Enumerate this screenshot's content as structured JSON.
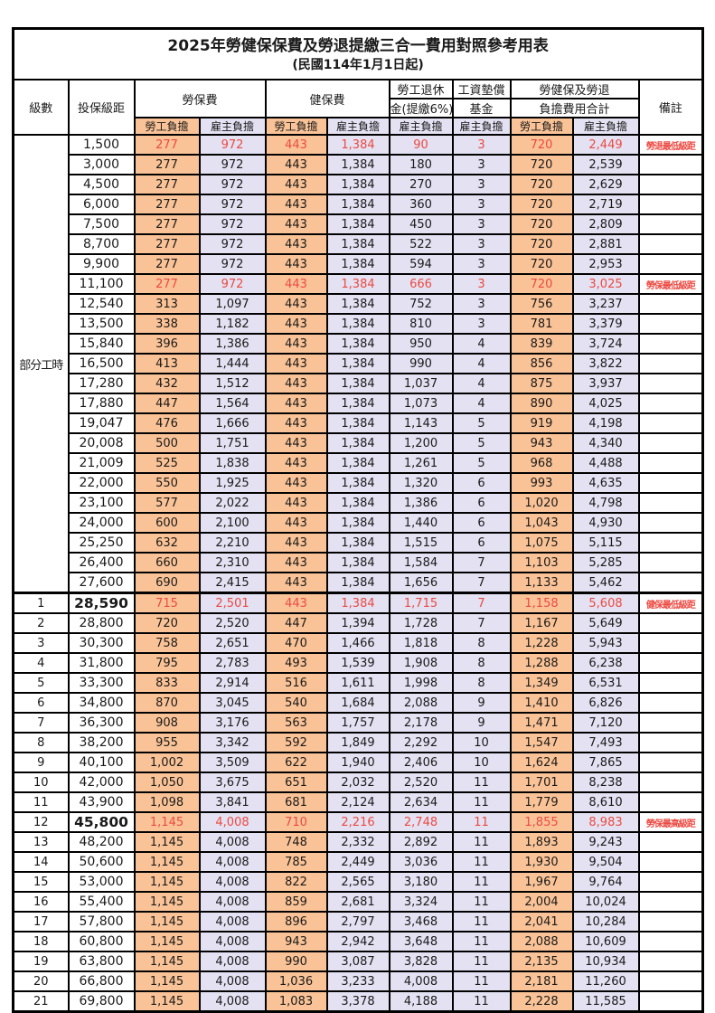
{
  "title": {
    "main": "2025年勞健保保費及勞退提繳三合一費用對照參考用表",
    "sub": "(民國114年1月1日起)"
  },
  "header": {
    "level": "級數",
    "bracket": "投保級距",
    "labor": "勞保費",
    "health": "健保費",
    "pension1": "勞工退休",
    "pension2": "金(提繳6%)",
    "wage1": "工資墊償",
    "wage2": "基金",
    "total1": "勞健保及勞退",
    "total2": "負擔費用合計",
    "note": "備註",
    "employee": "勞工負擔",
    "employer": "雇主負擔"
  },
  "colors": {
    "employee_fill": "#FAC397",
    "employer_fill": "#E3E1F2",
    "highlight_red": "#EC4A42",
    "border": "#000000",
    "background": "#FFFFFF"
  },
  "part_time": {
    "label": "部分工時",
    "rowspan": 23
  },
  "rows": [
    {
      "lv": null,
      "br": "1,500",
      "v": [
        "277",
        "972",
        "443",
        "1,384",
        "90",
        "3",
        "720",
        "2,449"
      ],
      "note": "勞退最低級距",
      "red": 1
    },
    {
      "lv": null,
      "br": "3,000",
      "v": [
        "277",
        "972",
        "443",
        "1,384",
        "180",
        "3",
        "720",
        "2,539"
      ],
      "note": ""
    },
    {
      "lv": null,
      "br": "4,500",
      "v": [
        "277",
        "972",
        "443",
        "1,384",
        "270",
        "3",
        "720",
        "2,629"
      ],
      "note": ""
    },
    {
      "lv": null,
      "br": "6,000",
      "v": [
        "277",
        "972",
        "443",
        "1,384",
        "360",
        "3",
        "720",
        "2,719"
      ],
      "note": ""
    },
    {
      "lv": null,
      "br": "7,500",
      "v": [
        "277",
        "972",
        "443",
        "1,384",
        "450",
        "3",
        "720",
        "2,809"
      ],
      "note": ""
    },
    {
      "lv": null,
      "br": "8,700",
      "v": [
        "277",
        "972",
        "443",
        "1,384",
        "522",
        "3",
        "720",
        "2,881"
      ],
      "note": ""
    },
    {
      "lv": null,
      "br": "9,900",
      "v": [
        "277",
        "972",
        "443",
        "1,384",
        "594",
        "3",
        "720",
        "2,953"
      ],
      "note": ""
    },
    {
      "lv": null,
      "br": "11,100",
      "v": [
        "277",
        "972",
        "443",
        "1,384",
        "666",
        "3",
        "720",
        "3,025"
      ],
      "note": "勞保最低級距",
      "red": 1
    },
    {
      "lv": null,
      "br": "12,540",
      "v": [
        "313",
        "1,097",
        "443",
        "1,384",
        "752",
        "3",
        "756",
        "3,237"
      ],
      "note": ""
    },
    {
      "lv": null,
      "br": "13,500",
      "v": [
        "338",
        "1,182",
        "443",
        "1,384",
        "810",
        "3",
        "781",
        "3,379"
      ],
      "note": ""
    },
    {
      "lv": null,
      "br": "15,840",
      "v": [
        "396",
        "1,386",
        "443",
        "1,384",
        "950",
        "4",
        "839",
        "3,724"
      ],
      "note": ""
    },
    {
      "lv": null,
      "br": "16,500",
      "v": [
        "413",
        "1,444",
        "443",
        "1,384",
        "990",
        "4",
        "856",
        "3,822"
      ],
      "note": ""
    },
    {
      "lv": null,
      "br": "17,280",
      "v": [
        "432",
        "1,512",
        "443",
        "1,384",
        "1,037",
        "4",
        "875",
        "3,937"
      ],
      "note": ""
    },
    {
      "lv": null,
      "br": "17,880",
      "v": [
        "447",
        "1,564",
        "443",
        "1,384",
        "1,073",
        "4",
        "890",
        "4,025"
      ],
      "note": ""
    },
    {
      "lv": null,
      "br": "19,047",
      "v": [
        "476",
        "1,666",
        "443",
        "1,384",
        "1,143",
        "5",
        "919",
        "4,198"
      ],
      "note": ""
    },
    {
      "lv": null,
      "br": "20,008",
      "v": [
        "500",
        "1,751",
        "443",
        "1,384",
        "1,200",
        "5",
        "943",
        "4,340"
      ],
      "note": ""
    },
    {
      "lv": null,
      "br": "21,009",
      "v": [
        "525",
        "1,838",
        "443",
        "1,384",
        "1,261",
        "5",
        "968",
        "4,488"
      ],
      "note": ""
    },
    {
      "lv": null,
      "br": "22,000",
      "v": [
        "550",
        "1,925",
        "443",
        "1,384",
        "1,320",
        "6",
        "993",
        "4,635"
      ],
      "note": ""
    },
    {
      "lv": null,
      "br": "23,100",
      "v": [
        "577",
        "2,022",
        "443",
        "1,384",
        "1,386",
        "6",
        "1,020",
        "4,798"
      ],
      "note": ""
    },
    {
      "lv": null,
      "br": "24,000",
      "v": [
        "600",
        "2,100",
        "443",
        "1,384",
        "1,440",
        "6",
        "1,043",
        "4,930"
      ],
      "note": ""
    },
    {
      "lv": null,
      "br": "25,250",
      "v": [
        "632",
        "2,210",
        "443",
        "1,384",
        "1,515",
        "6",
        "1,075",
        "5,115"
      ],
      "note": ""
    },
    {
      "lv": null,
      "br": "26,400",
      "v": [
        "660",
        "2,310",
        "443",
        "1,384",
        "1,584",
        "7",
        "1,103",
        "5,285"
      ],
      "note": ""
    },
    {
      "lv": null,
      "br": "27,600",
      "v": [
        "690",
        "2,415",
        "443",
        "1,384",
        "1,656",
        "7",
        "1,133",
        "5,462"
      ],
      "note": ""
    },
    {
      "lv": "1",
      "br": "28,590",
      "v": [
        "715",
        "2,501",
        "443",
        "1,384",
        "1,715",
        "7",
        "1,158",
        "5,608"
      ],
      "note": "健保最低級距",
      "red": 1,
      "bold": 1,
      "thick": 1
    },
    {
      "lv": "2",
      "br": "28,800",
      "v": [
        "720",
        "2,520",
        "447",
        "1,394",
        "1,728",
        "7",
        "1,167",
        "5,649"
      ],
      "note": ""
    },
    {
      "lv": "3",
      "br": "30,300",
      "v": [
        "758",
        "2,651",
        "470",
        "1,466",
        "1,818",
        "8",
        "1,228",
        "5,943"
      ],
      "note": ""
    },
    {
      "lv": "4",
      "br": "31,800",
      "v": [
        "795",
        "2,783",
        "493",
        "1,539",
        "1,908",
        "8",
        "1,288",
        "6,238"
      ],
      "note": ""
    },
    {
      "lv": "5",
      "br": "33,300",
      "v": [
        "833",
        "2,914",
        "516",
        "1,611",
        "1,998",
        "8",
        "1,349",
        "6,531"
      ],
      "note": ""
    },
    {
      "lv": "6",
      "br": "34,800",
      "v": [
        "870",
        "3,045",
        "540",
        "1,684",
        "2,088",
        "9",
        "1,410",
        "6,826"
      ],
      "note": ""
    },
    {
      "lv": "7",
      "br": "36,300",
      "v": [
        "908",
        "3,176",
        "563",
        "1,757",
        "2,178",
        "9",
        "1,471",
        "7,120"
      ],
      "note": ""
    },
    {
      "lv": "8",
      "br": "38,200",
      "v": [
        "955",
        "3,342",
        "592",
        "1,849",
        "2,292",
        "10",
        "1,547",
        "7,493"
      ],
      "note": ""
    },
    {
      "lv": "9",
      "br": "40,100",
      "v": [
        "1,002",
        "3,509",
        "622",
        "1,940",
        "2,406",
        "10",
        "1,624",
        "7,865"
      ],
      "note": ""
    },
    {
      "lv": "10",
      "br": "42,000",
      "v": [
        "1,050",
        "3,675",
        "651",
        "2,032",
        "2,520",
        "11",
        "1,701",
        "8,238"
      ],
      "note": ""
    },
    {
      "lv": "11",
      "br": "43,900",
      "v": [
        "1,098",
        "3,841",
        "681",
        "2,124",
        "2,634",
        "11",
        "1,779",
        "8,610"
      ],
      "note": ""
    },
    {
      "lv": "12",
      "br": "45,800",
      "v": [
        "1,145",
        "4,008",
        "710",
        "2,216",
        "2,748",
        "11",
        "1,855",
        "8,983"
      ],
      "note": "勞保最高級距",
      "red": 1,
      "bold": 1
    },
    {
      "lv": "13",
      "br": "48,200",
      "v": [
        "1,145",
        "4,008",
        "748",
        "2,332",
        "2,892",
        "11",
        "1,893",
        "9,243"
      ],
      "note": ""
    },
    {
      "lv": "14",
      "br": "50,600",
      "v": [
        "1,145",
        "4,008",
        "785",
        "2,449",
        "3,036",
        "11",
        "1,930",
        "9,504"
      ],
      "note": ""
    },
    {
      "lv": "15",
      "br": "53,000",
      "v": [
        "1,145",
        "4,008",
        "822",
        "2,565",
        "3,180",
        "11",
        "1,967",
        "9,764"
      ],
      "note": ""
    },
    {
      "lv": "16",
      "br": "55,400",
      "v": [
        "1,145",
        "4,008",
        "859",
        "2,681",
        "3,324",
        "11",
        "2,004",
        "10,024"
      ],
      "note": ""
    },
    {
      "lv": "17",
      "br": "57,800",
      "v": [
        "1,145",
        "4,008",
        "896",
        "2,797",
        "3,468",
        "11",
        "2,041",
        "10,284"
      ],
      "note": ""
    },
    {
      "lv": "18",
      "br": "60,800",
      "v": [
        "1,145",
        "4,008",
        "943",
        "2,942",
        "3,648",
        "11",
        "2,088",
        "10,609"
      ],
      "note": ""
    },
    {
      "lv": "19",
      "br": "63,800",
      "v": [
        "1,145",
        "4,008",
        "990",
        "3,087",
        "3,828",
        "11",
        "2,135",
        "10,934"
      ],
      "note": ""
    },
    {
      "lv": "20",
      "br": "66,800",
      "v": [
        "1,145",
        "4,008",
        "1,036",
        "3,233",
        "4,008",
        "11",
        "2,181",
        "11,260"
      ],
      "note": ""
    },
    {
      "lv": "21",
      "br": "69,800",
      "v": [
        "1,145",
        "4,008",
        "1,083",
        "3,378",
        "4,188",
        "11",
        "2,228",
        "11,585"
      ],
      "note": ""
    }
  ]
}
